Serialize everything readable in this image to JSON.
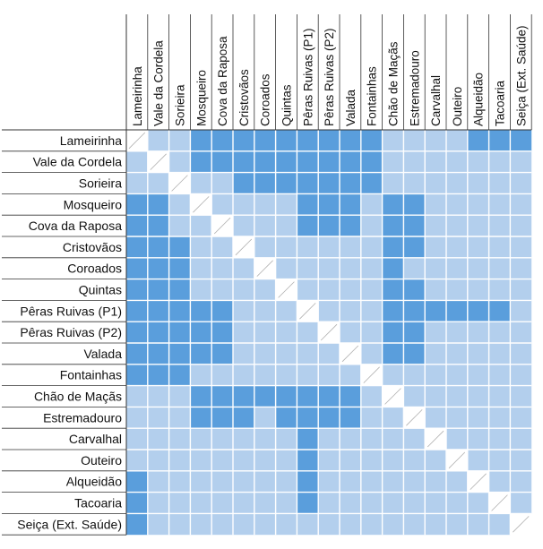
{
  "chart_data": {
    "type": "heatmap",
    "title": "",
    "labels": [
      "Lameirinha",
      "Vale da Cordela",
      "Sorieira",
      "Mosqueiro",
      "Cova da Raposa",
      "Cristovãos",
      "Coroados",
      "Quintas",
      "Pêras Ruivas (P1)",
      "Pêras Ruivas (P2)",
      "Valada",
      "Fontainhas",
      "Chão de Maçãs",
      "Estremadouro",
      "Carvalhal",
      "Outeiro",
      "Alqueidão",
      "Tacoaria",
      "Seiça (Ext. Saúde)"
    ],
    "matrix": [
      [
        -1,
        0,
        0,
        1,
        1,
        1,
        1,
        1,
        1,
        1,
        1,
        1,
        0,
        0,
        0,
        0,
        1,
        1,
        1
      ],
      [
        0,
        -1,
        0,
        1,
        1,
        1,
        1,
        1,
        1,
        1,
        1,
        1,
        0,
        0,
        0,
        0,
        0,
        0,
        0
      ],
      [
        0,
        0,
        -1,
        0,
        0,
        1,
        1,
        1,
        1,
        1,
        1,
        1,
        0,
        0,
        0,
        0,
        0,
        0,
        0
      ],
      [
        1,
        1,
        0,
        -1,
        0,
        0,
        0,
        0,
        1,
        1,
        1,
        0,
        1,
        1,
        0,
        0,
        0,
        0,
        0
      ],
      [
        1,
        1,
        0,
        0,
        -1,
        0,
        0,
        0,
        1,
        1,
        1,
        0,
        1,
        1,
        0,
        0,
        0,
        0,
        0
      ],
      [
        1,
        1,
        1,
        0,
        0,
        -1,
        0,
        0,
        0,
        0,
        0,
        0,
        1,
        1,
        0,
        0,
        0,
        0,
        0
      ],
      [
        1,
        1,
        1,
        0,
        0,
        0,
        -1,
        0,
        0,
        0,
        0,
        0,
        1,
        0,
        0,
        0,
        0,
        0,
        0
      ],
      [
        1,
        1,
        1,
        0,
        0,
        0,
        0,
        -1,
        0,
        0,
        0,
        0,
        1,
        1,
        0,
        0,
        0,
        0,
        0
      ],
      [
        1,
        1,
        1,
        1,
        1,
        0,
        0,
        0,
        -1,
        0,
        0,
        0,
        1,
        1,
        1,
        1,
        1,
        1,
        0
      ],
      [
        1,
        1,
        1,
        1,
        1,
        0,
        0,
        0,
        0,
        -1,
        0,
        0,
        1,
        1,
        0,
        0,
        0,
        0,
        0
      ],
      [
        1,
        1,
        1,
        1,
        1,
        0,
        0,
        0,
        0,
        0,
        -1,
        0,
        1,
        1,
        0,
        0,
        0,
        0,
        0
      ],
      [
        1,
        1,
        1,
        0,
        0,
        0,
        0,
        0,
        0,
        0,
        0,
        -1,
        0,
        0,
        0,
        0,
        0,
        0,
        0
      ],
      [
        0,
        0,
        0,
        1,
        1,
        1,
        1,
        1,
        1,
        1,
        1,
        0,
        -1,
        0,
        0,
        0,
        0,
        0,
        0
      ],
      [
        0,
        0,
        0,
        1,
        1,
        1,
        0,
        1,
        1,
        1,
        1,
        0,
        0,
        -1,
        0,
        0,
        0,
        0,
        0
      ],
      [
        0,
        0,
        0,
        0,
        0,
        0,
        0,
        0,
        1,
        0,
        0,
        0,
        0,
        0,
        -1,
        0,
        0,
        0,
        0
      ],
      [
        0,
        0,
        0,
        0,
        0,
        0,
        0,
        0,
        1,
        0,
        0,
        0,
        0,
        0,
        0,
        -1,
        0,
        0,
        0
      ],
      [
        1,
        0,
        0,
        0,
        0,
        0,
        0,
        0,
        1,
        0,
        0,
        0,
        0,
        0,
        0,
        0,
        -1,
        0,
        0
      ],
      [
        1,
        0,
        0,
        0,
        0,
        0,
        0,
        0,
        1,
        0,
        0,
        0,
        0,
        0,
        0,
        0,
        0,
        -1,
        0
      ],
      [
        1,
        0,
        0,
        0,
        0,
        0,
        0,
        0,
        0,
        0,
        0,
        0,
        0,
        0,
        0,
        0,
        0,
        0,
        -1
      ]
    ],
    "legend": "none",
    "colors": {
      "dark": "#5a9edc",
      "light": "#b3cfed",
      "diagonal": "#ffffff",
      "grid": "#ffffff",
      "slash": "#b0b0b0",
      "text": "#111111",
      "frame": "#333333"
    }
  }
}
